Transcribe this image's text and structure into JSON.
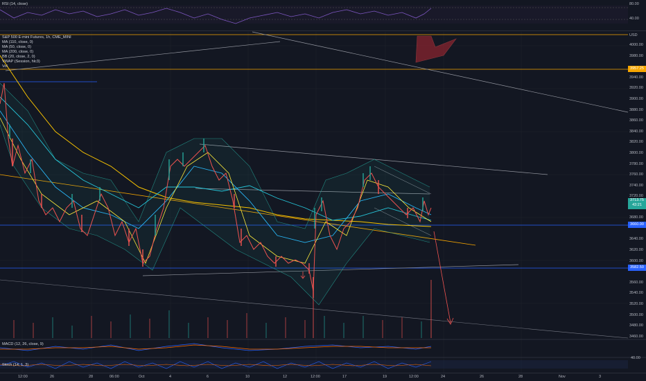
{
  "rsi": {
    "label": "RSI (14, close)",
    "levels": [
      "80.00",
      "40.00"
    ]
  },
  "main": {
    "symbol": "S&P 500 E-mini Futures, 1h, CME_MINI",
    "indicators": [
      "MA (110, close, 0)",
      "MA (50, close, 0)",
      "MA (200, close, 0)",
      "BB (20, close, 2, 0)",
      "VWAP (Session, hlc3)",
      "Vol"
    ],
    "currency": "USD",
    "price_labels": [
      "4000.00",
      "3980.00",
      "3960.00",
      "3940.00",
      "3920.00",
      "3900.00",
      "3880.00",
      "3860.00",
      "3840.00",
      "3820.00",
      "3800.00",
      "3780.00",
      "3760.00",
      "3740.00",
      "3720.00",
      "3700.00",
      "3680.00",
      "3660.00",
      "3640.00",
      "3620.00",
      "3600.00",
      "3580.00",
      "3560.00",
      "3540.00",
      "3520.00",
      "3500.00",
      "3480.00",
      "3460.00"
    ],
    "tags": {
      "resistance": "3957.25",
      "current_price": "3713.75",
      "countdown": "43:21",
      "level_mid": "3660.00",
      "level_low": "3582.50"
    },
    "colors": {
      "resistance": "#f7a600",
      "current": "#26a69a",
      "level": "#2962ff"
    }
  },
  "macd": {
    "label": "MACD (12, 26, close, 9)"
  },
  "stoch": {
    "label": "Stoch (14, 1, 3)",
    "level": "40.00"
  },
  "time_axis": [
    "12:00",
    "26",
    "28",
    "06:00",
    "Oct",
    "4",
    "6",
    "10",
    "12",
    "12:00",
    "17",
    "19",
    "12:00",
    "24",
    "26",
    "28",
    "Nov",
    "3"
  ]
}
